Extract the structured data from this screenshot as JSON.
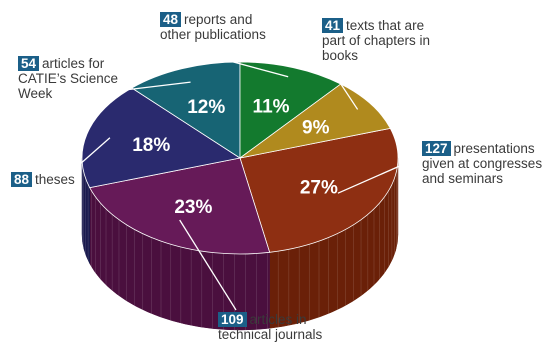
{
  "chart_data": {
    "type": "pie",
    "style": "3d",
    "slices": [
      {
        "count": "127",
        "text": "presentations given at congresses and seminars",
        "percent": 27,
        "pct_label": "27%",
        "color": "#8e2f12",
        "side_color": "#6a2008"
      },
      {
        "count": "109",
        "text": "articles in technical journals",
        "percent": 23,
        "pct_label": "23%",
        "color": "#661a58",
        "side_color": "#4a0f3e"
      },
      {
        "count": "88",
        "text": "theses",
        "percent": 18,
        "pct_label": "18%",
        "color": "#2a2a6e",
        "side_color": "#1a1a4e"
      },
      {
        "count": "54",
        "text": "articles for CATIE’s Science Week",
        "percent": 12,
        "pct_label": "12%",
        "color": "#176474",
        "side_color": "#0e4754"
      },
      {
        "count": "48",
        "text": "reports and other publications",
        "percent": 11,
        "pct_label": "11%",
        "color": "#137a2e",
        "side_color": "#0c5a20"
      },
      {
        "count": "41",
        "text": "texts that are part of chapters in books",
        "percent": 9,
        "pct_label": "9%",
        "color": "#b08a1e",
        "side_color": "#8a6a10"
      }
    ]
  }
}
